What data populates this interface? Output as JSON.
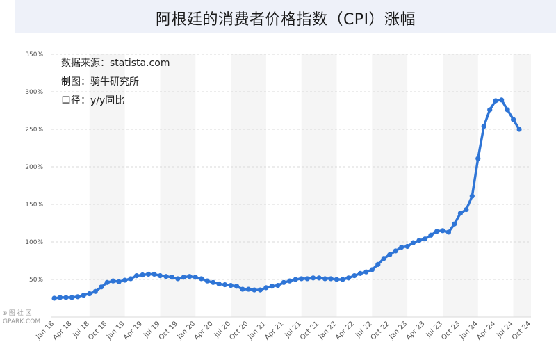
{
  "header": {
    "title": "阿根廷的消费者价格指数（CPI）涨幅"
  },
  "notes": {
    "source": "数据来源：statista.com",
    "credit": "制图：骑牛研究所",
    "basis": "口径：y/y同比"
  },
  "watermark": {
    "line1": "𝕯 图 社 区",
    "line2": "GPARK.COM"
  },
  "chart_data": {
    "type": "line",
    "title": "阿根廷的消费者价格指数（CPI）涨幅",
    "xlabel": "",
    "ylabel": "",
    "ylim": [
      0,
      350
    ],
    "yticks": [
      0,
      50,
      100,
      150,
      200,
      250,
      300,
      350
    ],
    "ytick_labels": [
      "",
      "50%",
      "100%",
      "150%",
      "200%",
      "250%",
      "300%",
      "350%"
    ],
    "xtick_labels": [
      "Jan 18",
      "Apr 18",
      "Jul 18",
      "Oct 18",
      "Jan 19",
      "Apr 19",
      "Jul 19",
      "Oct 19",
      "Jan 20",
      "Apr 20",
      "Jul 20",
      "Oct 20",
      "Jan 21",
      "Apr 21",
      "Jul 21",
      "Oct 21",
      "Jan 22",
      "Apr 22",
      "Jul 22",
      "Oct 22",
      "Jan 23",
      "Apr 23",
      "Jul 23",
      "Oct 23",
      "Jan 24",
      "Apr 24",
      "Jul 24",
      "Oct 24"
    ],
    "grid": true,
    "color": "#2f75d6",
    "series": [
      {
        "x": [
          "Jan 18",
          "Feb 18",
          "Mar 18",
          "Apr 18",
          "May 18",
          "Jun 18",
          "Jul 18",
          "Aug 18",
          "Sep 18",
          "Oct 18",
          "Nov 18",
          "Dec 18",
          "Jan 19",
          "Feb 19",
          "Mar 19",
          "Apr 19",
          "May 19",
          "Jun 19",
          "Jul 19",
          "Aug 19",
          "Sep 19",
          "Oct 19",
          "Nov 19",
          "Dec 19",
          "Jan 20",
          "Feb 20",
          "Mar 20",
          "Apr 20",
          "May 20",
          "Jun 20",
          "Jul 20",
          "Aug 20",
          "Sep 20",
          "Oct 20",
          "Nov 20",
          "Dec 20",
          "Jan 21",
          "Feb 21",
          "Mar 21",
          "Apr 21",
          "May 21",
          "Jun 21",
          "Jul 21",
          "Aug 21",
          "Sep 21",
          "Oct 21",
          "Nov 21",
          "Dec 21",
          "Jan 22",
          "Feb 22",
          "Mar 22",
          "Apr 22",
          "May 22",
          "Jun 22",
          "Jul 22",
          "Aug 22",
          "Sep 22",
          "Oct 22",
          "Nov 22",
          "Dec 22",
          "Jan 23",
          "Feb 23",
          "Mar 23",
          "Apr 23",
          "May 23",
          "Jun 23",
          "Jul 23",
          "Aug 23",
          "Sep 23",
          "Oct 23",
          "Nov 23",
          "Dec 23",
          "Jan 24",
          "Feb 24",
          "Mar 24",
          "Apr 24",
          "May 24",
          "Jun 24",
          "Jul 24",
          "Aug 24"
        ],
        "values": [
          25,
          26,
          26,
          26,
          27,
          29,
          31,
          34,
          40,
          46,
          48,
          47,
          49,
          51,
          55,
          56,
          57,
          57,
          55,
          54,
          53,
          51,
          53,
          54,
          53,
          51,
          48,
          46,
          44,
          43,
          42,
          41,
          37,
          37,
          36,
          36,
          39,
          41,
          42,
          46,
          48,
          50,
          51,
          51,
          52,
          52,
          51,
          51,
          50,
          50,
          52,
          55,
          58,
          60,
          63,
          70,
          78,
          83,
          88,
          93,
          94,
          99,
          102,
          104,
          109,
          114,
          115,
          113,
          124,
          138,
          143,
          161,
          211,
          254,
          276,
          288,
          289,
          276,
          263,
          250
        ]
      }
    ]
  }
}
